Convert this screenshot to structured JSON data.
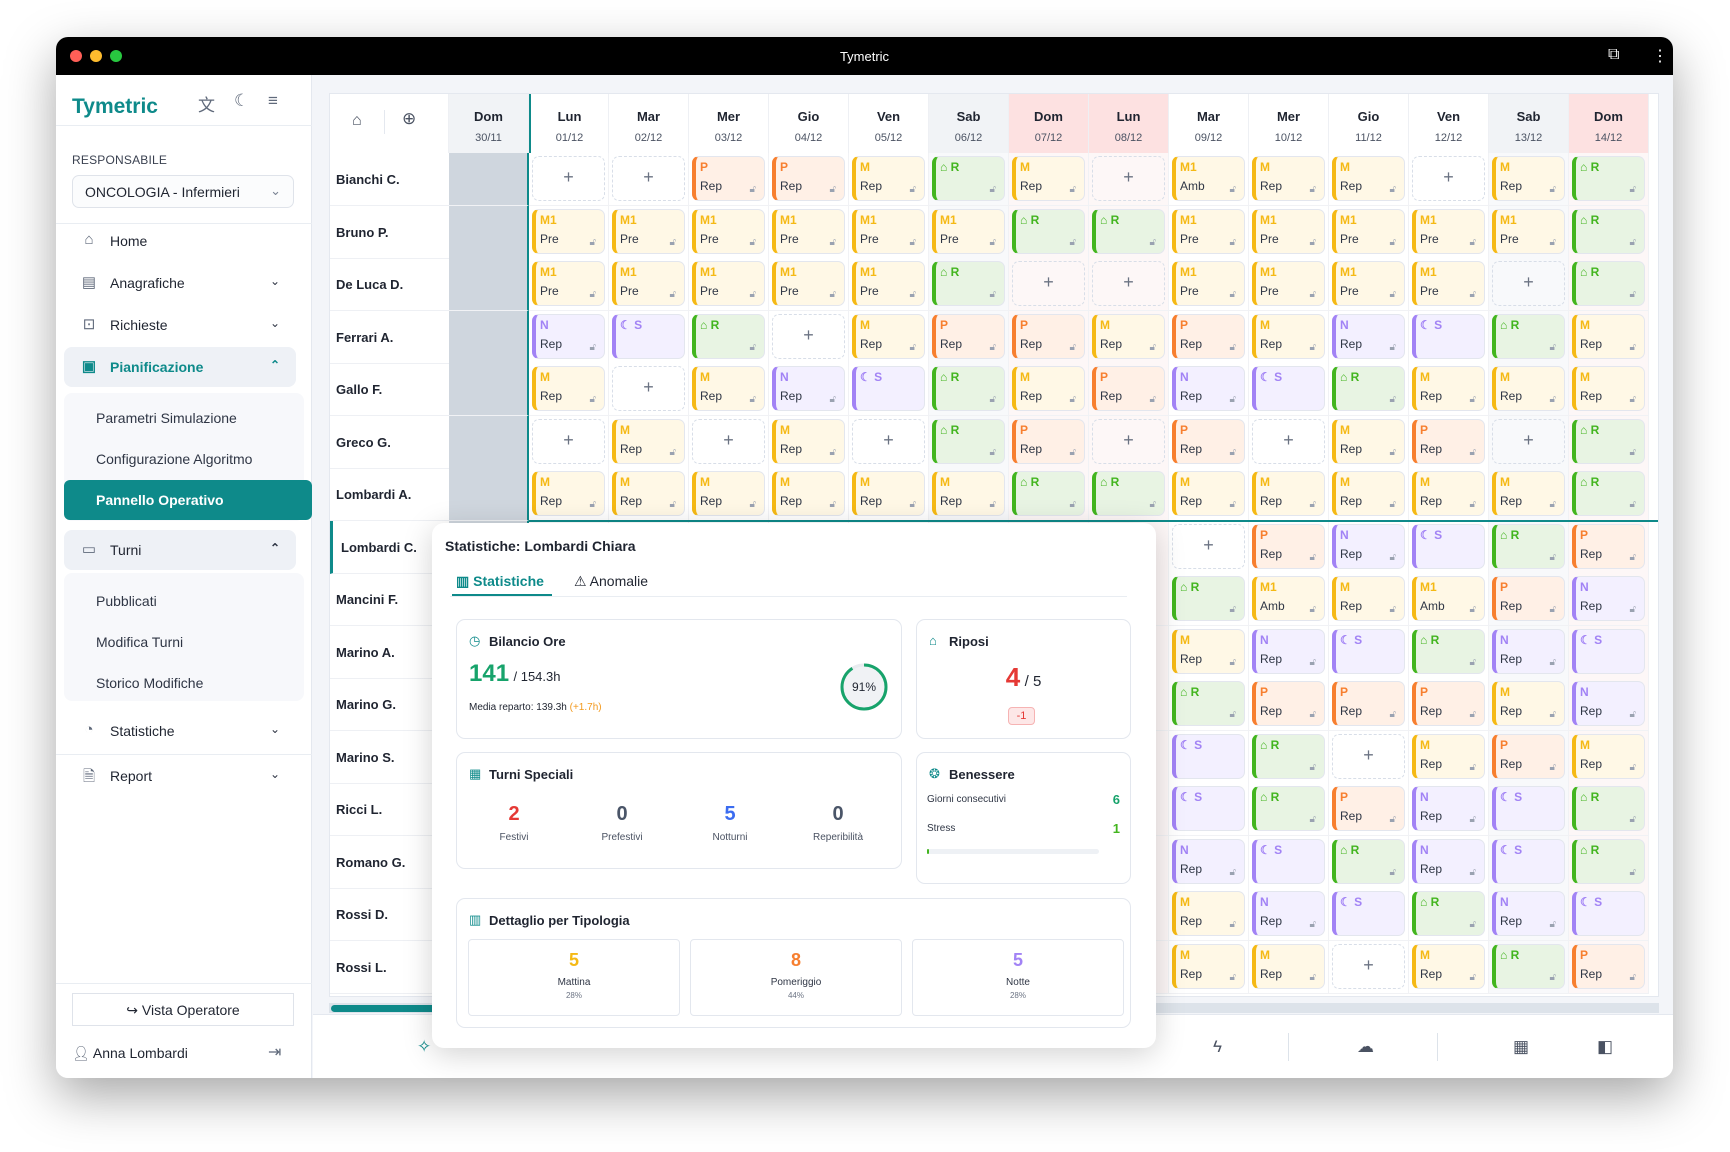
{
  "window": {
    "title": "Tymetric"
  },
  "sidebar": {
    "logo": "Tymetric",
    "responsabile_label": "RESPONSABILE",
    "department": "ONCOLOGIA - Infermieri",
    "nav": [
      {
        "label": "Home",
        "icon": "home-icon"
      },
      {
        "label": "Anagrafiche",
        "icon": "id-card-icon"
      },
      {
        "label": "Richieste",
        "icon": "inbox-icon"
      },
      {
        "label": "Pianificazione",
        "icon": "layout-icon",
        "active": true
      },
      {
        "label": "Turni",
        "icon": "calendar-icon"
      },
      {
        "label": "Statistiche",
        "icon": "pie-chart-icon"
      },
      {
        "label": "Report",
        "icon": "file-chart-icon"
      }
    ],
    "pianificazione_sub": [
      "Parametri Simulazione",
      "Configurazione Algoritmo",
      "Pannello Operativo"
    ],
    "turni_sub": [
      "Pubblicati",
      "Modifica Turni",
      "Storico Modifiche"
    ],
    "vista_operatore": "Vista Operatore",
    "user": "Anna Lombardi"
  },
  "grid": {
    "columns": [
      {
        "day": "Dom",
        "date": "30/11",
        "type": "past"
      },
      {
        "day": "Lun",
        "date": "01/12",
        "type": "today"
      },
      {
        "day": "Mar",
        "date": "02/12",
        "type": "weekday"
      },
      {
        "day": "Mer",
        "date": "03/12",
        "type": "weekday"
      },
      {
        "day": "Gio",
        "date": "04/12",
        "type": "weekday"
      },
      {
        "day": "Ven",
        "date": "05/12",
        "type": "weekday"
      },
      {
        "day": "Sab",
        "date": "06/12",
        "type": "saturday"
      },
      {
        "day": "Dom",
        "date": "07/12",
        "type": "holiday"
      },
      {
        "day": "Lun",
        "date": "08/12",
        "type": "holiday"
      },
      {
        "day": "Mar",
        "date": "09/12",
        "type": "weekday"
      },
      {
        "day": "Mer",
        "date": "10/12",
        "type": "weekday"
      },
      {
        "day": "Gio",
        "date": "11/12",
        "type": "weekday"
      },
      {
        "day": "Ven",
        "date": "12/12",
        "type": "weekday"
      },
      {
        "day": "Sab",
        "date": "13/12",
        "type": "saturday"
      },
      {
        "day": "Dom",
        "date": "14/12",
        "type": "holiday"
      }
    ],
    "rows": [
      {
        "name": "Bianchi C.",
        "cells": [
          "+",
          "+",
          "P Rep",
          "P Rep",
          "M Rep",
          "R",
          "M Rep",
          "+",
          "M1 Amb",
          "M Rep",
          "M Rep",
          "+",
          "M Rep",
          "R"
        ]
      },
      {
        "name": "Bruno P.",
        "cells": [
          "M1 Pre",
          "M1 Pre",
          "M1 Pre",
          "M1 Pre",
          "M1 Pre",
          "M1 Pre",
          "R",
          "R",
          "M1 Pre",
          "M1 Pre",
          "M1 Pre",
          "M1 Pre",
          "M1 Pre",
          "R"
        ]
      },
      {
        "name": "De Luca D.",
        "cells": [
          "M1 Pre",
          "M1 Pre",
          "M1 Pre",
          "M1 Pre",
          "M1 Pre",
          "R",
          "+",
          "+",
          "M1 Pre",
          "M1 Pre",
          "M1 Pre",
          "M1 Pre",
          "+",
          "R"
        ]
      },
      {
        "name": "Ferrari A.",
        "cells": [
          "N Rep",
          "S",
          "R",
          "+",
          "M Rep",
          "P Rep",
          "P Rep",
          "M Rep",
          "P Rep",
          "M Rep",
          "N Rep",
          "S",
          "R",
          "M Rep"
        ]
      },
      {
        "name": "Gallo F.",
        "cells": [
          "M Rep",
          "+",
          "M Rep",
          "N Rep",
          "S",
          "R",
          "M Rep",
          "P Rep",
          "N Rep",
          "S",
          "R",
          "M Rep",
          "M Rep",
          "M Rep"
        ]
      },
      {
        "name": "Greco G.",
        "cells": [
          "+",
          "M Rep",
          "+",
          "M Rep",
          "+",
          "R",
          "P Rep",
          "+",
          "P Rep",
          "+",
          "M Rep",
          "P Rep",
          "+",
          "R"
        ]
      },
      {
        "name": "Lombardi A.",
        "cells": [
          "M Rep",
          "M Rep",
          "M Rep",
          "M Rep",
          "M Rep",
          "M Rep",
          "R",
          "R",
          "M Rep",
          "M Rep",
          "M Rep",
          "M Rep",
          "M Rep",
          "R"
        ]
      },
      {
        "name": "Lombardi C.",
        "selected": true,
        "cells": [
          null,
          null,
          null,
          null,
          null,
          null,
          null,
          null,
          "+",
          "P Rep",
          "N Rep",
          "S",
          "R",
          "P Rep"
        ]
      },
      {
        "name": "Mancini F.",
        "cells": [
          null,
          null,
          null,
          null,
          null,
          null,
          null,
          null,
          "R",
          "M1 Amb",
          "M Rep",
          "M1 Amb",
          "P Rep",
          "N Rep"
        ]
      },
      {
        "name": "Marino A.",
        "cells": [
          null,
          null,
          null,
          null,
          null,
          null,
          null,
          null,
          "M Rep",
          "N Rep",
          "S",
          "R",
          "N Rep",
          "S"
        ]
      },
      {
        "name": "Marino G.",
        "cells": [
          null,
          null,
          null,
          null,
          null,
          null,
          null,
          null,
          "R",
          "P Rep",
          "P Rep",
          "P Rep",
          "M Rep",
          "N Rep"
        ]
      },
      {
        "name": "Marino S.",
        "cells": [
          null,
          null,
          null,
          null,
          null,
          null,
          null,
          null,
          "S",
          "R",
          "+",
          "M Rep",
          "P Rep",
          "M Rep"
        ]
      },
      {
        "name": "Ricci L.",
        "cells": [
          null,
          null,
          null,
          null,
          null,
          null,
          null,
          null,
          "S",
          "R",
          "P Rep",
          "N Rep",
          "S",
          "R"
        ]
      },
      {
        "name": "Romano G.",
        "cells": [
          null,
          null,
          null,
          null,
          null,
          null,
          null,
          null,
          "N Rep",
          "S",
          "R",
          "N Rep",
          "S",
          "R"
        ]
      },
      {
        "name": "Rossi D.",
        "cells": [
          null,
          null,
          null,
          null,
          null,
          null,
          null,
          null,
          "M Rep",
          "N Rep",
          "S",
          "R",
          "N Rep",
          "S"
        ]
      },
      {
        "name": "Rossi L.",
        "cells": [
          null,
          null,
          null,
          null,
          null,
          null,
          null,
          null,
          "M Rep",
          "M Rep",
          "+",
          "M Rep",
          "R",
          "P Rep"
        ]
      }
    ],
    "shift_colors": {
      "M": "#f5b915",
      "M1": "#f5b915",
      "P": "#f77f2f",
      "N": "#a283f5",
      "S": "#a283f5",
      "R": "#43b51f"
    }
  },
  "popup": {
    "title": "Statistiche: Lombardi Chiara",
    "tabs": [
      "Statistiche",
      "Anomalie"
    ],
    "bilancio": {
      "title": "Bilancio Ore",
      "hours": "141",
      "target": "/ 154.3h",
      "media": "Media reparto: 139.3h",
      "delta": "(+1.7h)",
      "percent_label": "91%",
      "percent": 91
    },
    "riposi": {
      "title": "Riposi",
      "value": "4",
      "total": "/ 5",
      "delta": "-1"
    },
    "turni_speciali": {
      "title": "Turni Speciali",
      "items": [
        {
          "value": "2",
          "label": "Festivi",
          "color": "#e53935"
        },
        {
          "value": "0",
          "label": "Prefestivi",
          "color": "#4a5568"
        },
        {
          "value": "5",
          "label": "Notturni",
          "color": "#3b6cf0"
        },
        {
          "value": "0",
          "label": "Reperibilità",
          "color": "#4a5568"
        }
      ]
    },
    "benessere": {
      "title": "Benessere",
      "giorni_label": "Giorni consecutivi",
      "giorni": "6",
      "stress_label": "Stress",
      "stress": "1",
      "stress_level": 0.01
    },
    "dettaglio": {
      "title": "Dettaglio per Tipologia",
      "items": [
        {
          "value": "5",
          "label": "Mattina",
          "pct": "28%",
          "color": "#f5b915"
        },
        {
          "value": "8",
          "label": "Pomeriggio",
          "pct": "44%",
          "color": "#f77f2f"
        },
        {
          "value": "5",
          "label": "Notte",
          "pct": "28%",
          "color": "#a283f5"
        }
      ]
    }
  },
  "accent": "#0e8a8a"
}
